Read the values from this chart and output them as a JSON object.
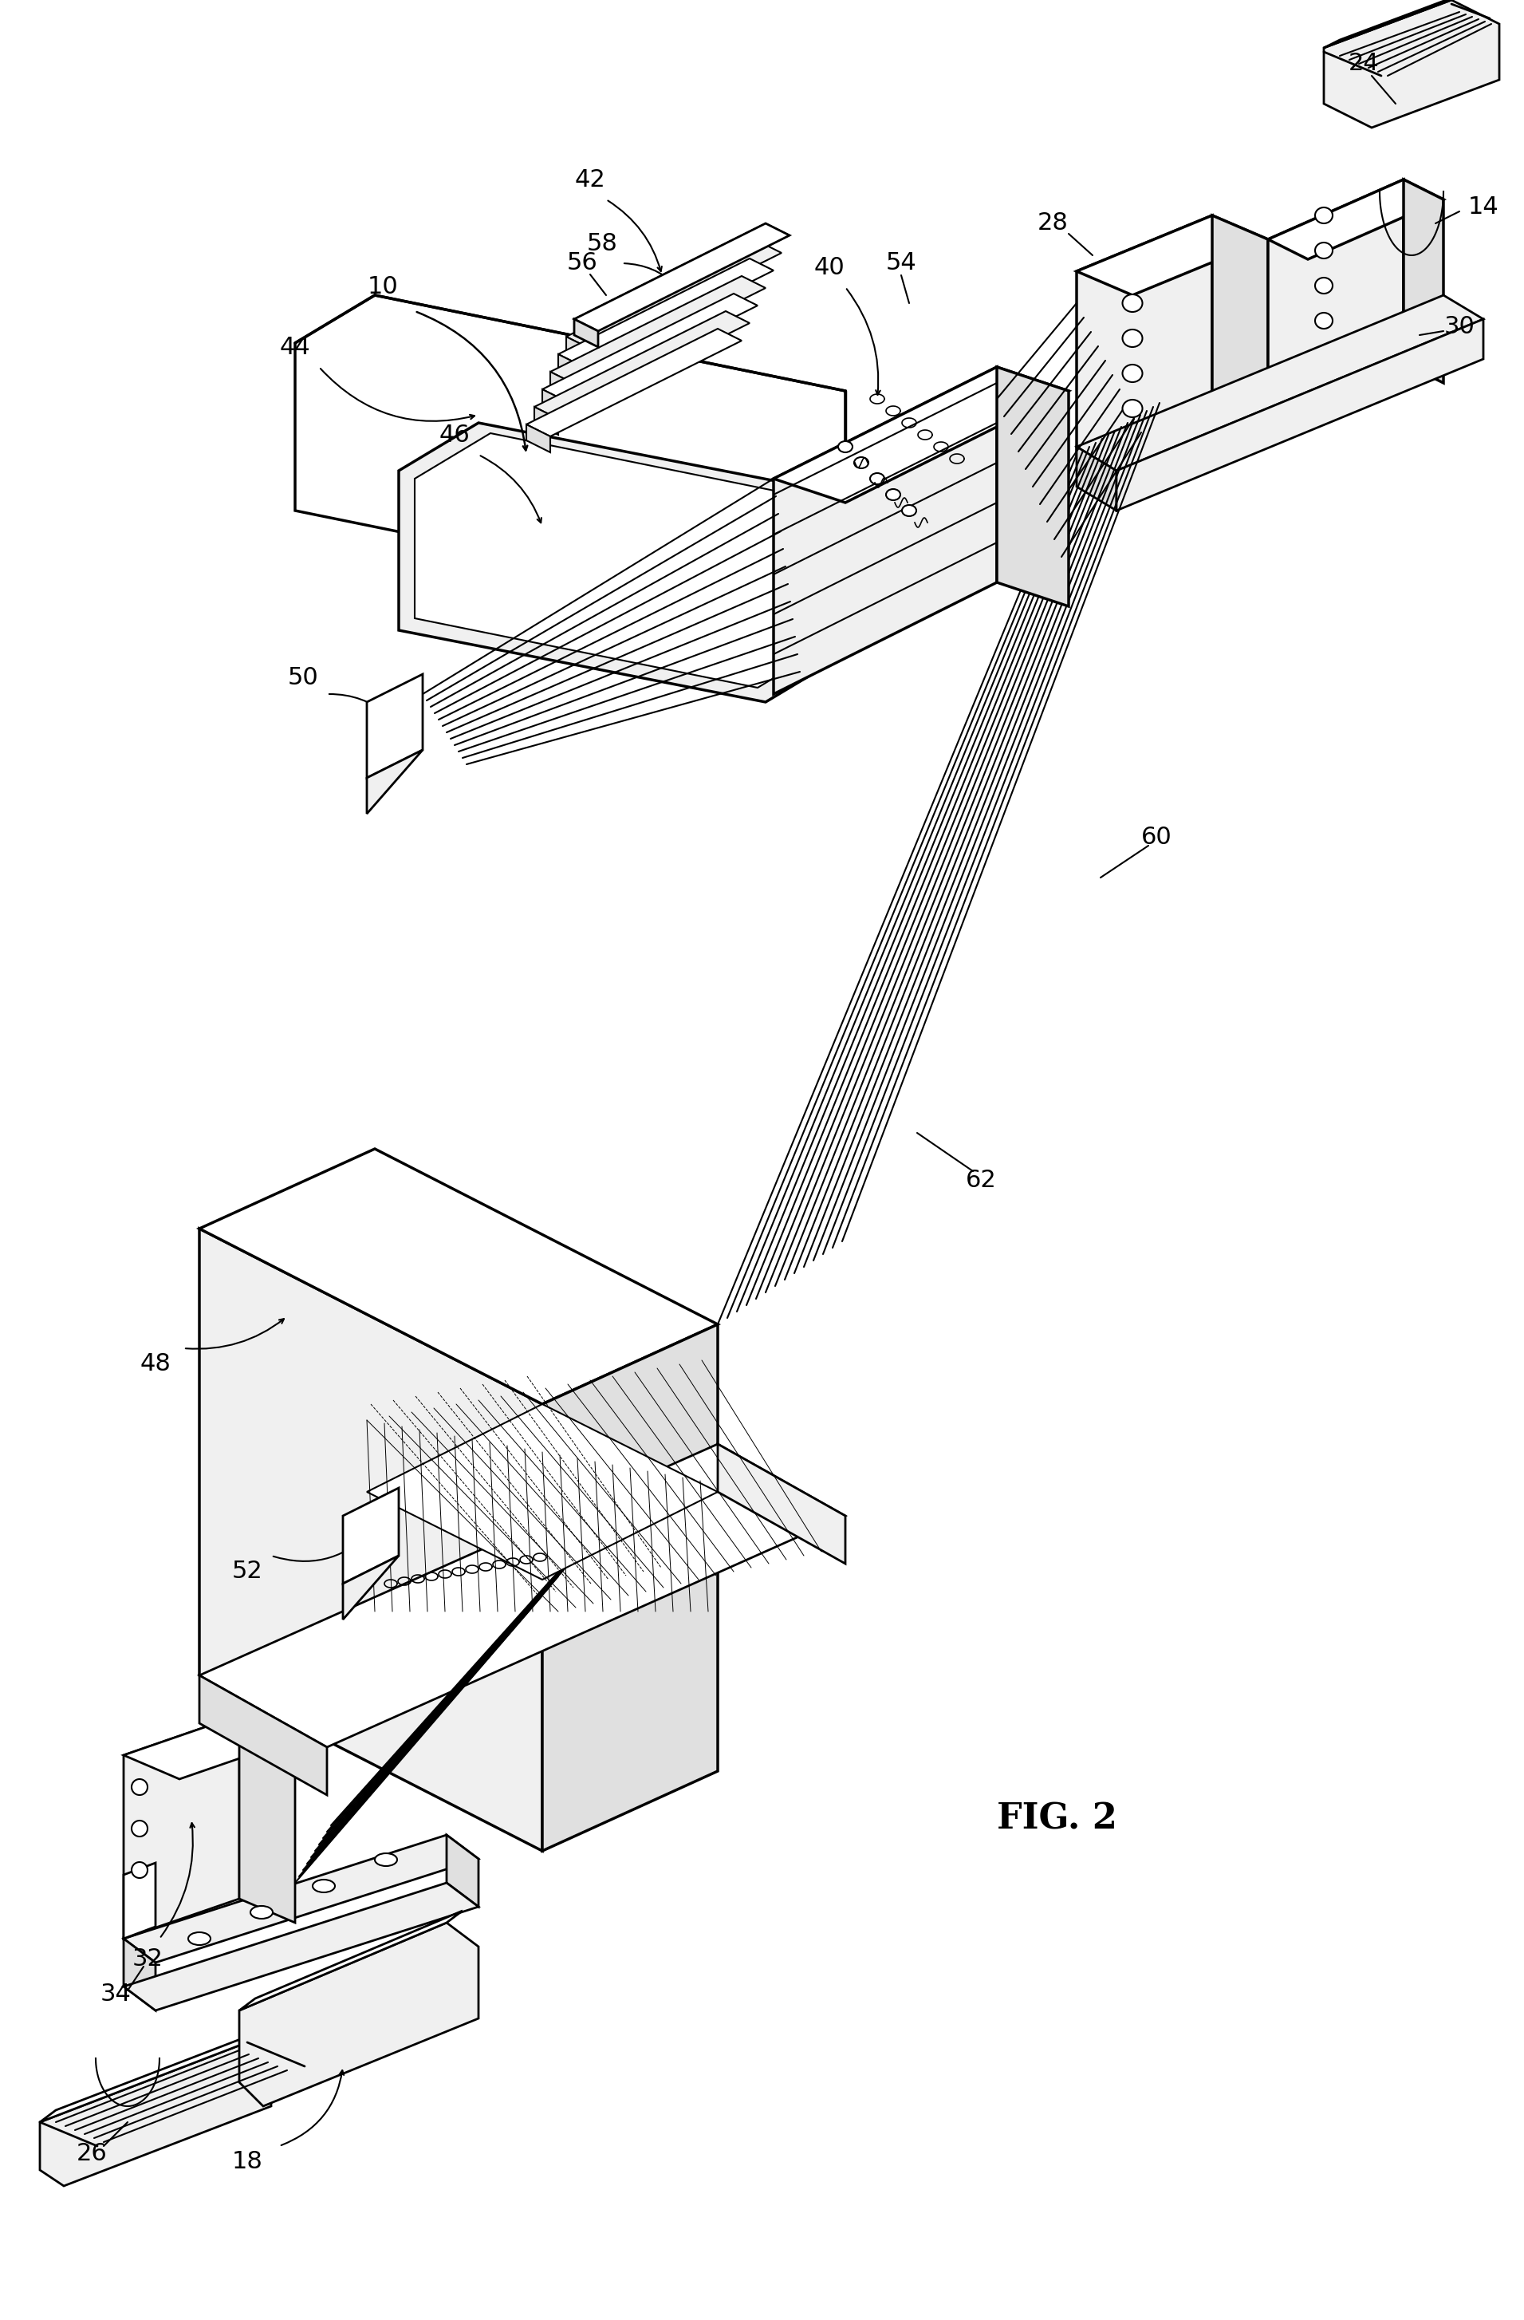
{
  "background_color": "#ffffff",
  "line_color": "#000000",
  "fig_label": "FIG. 2",
  "fig_label_fontsize": 32,
  "ref_fontsize": 22,
  "lw": 2.0,
  "lw_thick": 2.5,
  "lw_thin": 1.5
}
